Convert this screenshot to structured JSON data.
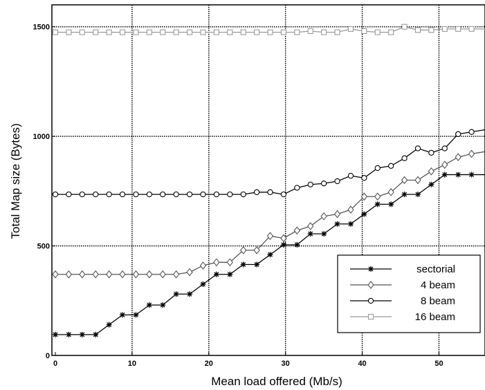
{
  "chart_data": {
    "type": "line",
    "xlabel": "Mean load offered (Mb/s)",
    "ylabel": "Total Map size (Bytes)",
    "xlim": [
      0,
      56
    ],
    "ylim": [
      0,
      1600
    ],
    "xticks": [
      0,
      10,
      20,
      30,
      40,
      50
    ],
    "yticks": [
      0,
      500,
      1000,
      1500
    ],
    "grid": true,
    "legend_position": "lower-right",
    "x": [
      0,
      1.75,
      3.5,
      5.25,
      7,
      8.75,
      10.5,
      12.25,
      14,
      15.75,
      17.5,
      19.25,
      21,
      22.75,
      24.5,
      26.25,
      28,
      29.75,
      31.5,
      33.25,
      35,
      36.75,
      38.5,
      40.25,
      42,
      43.75,
      45.5,
      47.25,
      49,
      50.75,
      52.5,
      54.25,
      56
    ],
    "series": [
      {
        "name": "sectorial",
        "color": "#000000",
        "marker": "asterisk",
        "values": [
          95,
          95,
          95,
          95,
          140,
          185,
          185,
          230,
          230,
          280,
          280,
          325,
          370,
          370,
          415,
          415,
          460,
          505,
          505,
          555,
          555,
          600,
          600,
          645,
          690,
          690,
          735,
          735,
          780,
          825,
          825,
          825,
          825
        ]
      },
      {
        "name": "4 beam",
        "color": "#555555",
        "marker": "diamond",
        "values": [
          370,
          370,
          370,
          370,
          370,
          370,
          370,
          370,
          370,
          370,
          380,
          410,
          425,
          425,
          480,
          480,
          545,
          535,
          570,
          590,
          635,
          645,
          665,
          725,
          725,
          745,
          800,
          800,
          840,
          870,
          905,
          920,
          930
        ]
      },
      {
        "name": "8 beam",
        "color": "#000000",
        "marker": "circle",
        "values": [
          735,
          735,
          735,
          735,
          735,
          735,
          735,
          735,
          735,
          735,
          735,
          735,
          735,
          735,
          735,
          745,
          745,
          735,
          765,
          780,
          785,
          795,
          820,
          810,
          855,
          865,
          900,
          945,
          925,
          945,
          1010,
          1020,
          1030
        ]
      },
      {
        "name": "16 beam",
        "color": "#999999",
        "marker": "square",
        "values": [
          1475,
          1475,
          1475,
          1475,
          1475,
          1475,
          1475,
          1475,
          1475,
          1475,
          1475,
          1475,
          1475,
          1475,
          1475,
          1475,
          1475,
          1475,
          1475,
          1480,
          1475,
          1475,
          1490,
          1480,
          1475,
          1475,
          1500,
          1485,
          1485,
          1490,
          1490,
          1490,
          1490
        ]
      }
    ]
  }
}
